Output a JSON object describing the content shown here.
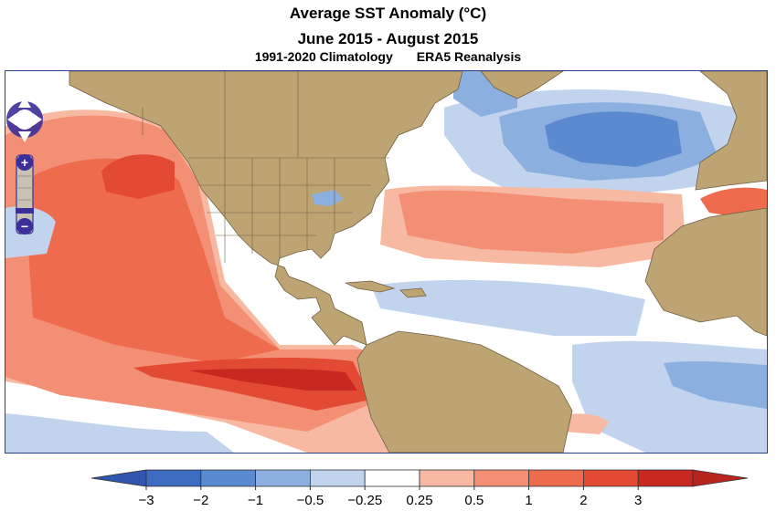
{
  "title": {
    "main": "Average SST Anomaly (°C)",
    "period": "June 2015 - August 2015",
    "climatology": "1991-2020 Climatology",
    "dataset": "ERA5 Reanalysis"
  },
  "map": {
    "land_color": "#bfa473",
    "ocean_color": "#ffffff",
    "border_color": "#2b3f8f",
    "controls": {
      "pan_up": "pan-up",
      "pan_down": "pan-down",
      "pan_left": "pan-left",
      "pan_right": "pan-right",
      "zoom_in": "+",
      "zoom_out": "−"
    }
  },
  "colorbar": {
    "ticks": [
      "−3",
      "−2",
      "−1",
      "−0.5",
      "−0.25",
      "0.25",
      "0.5",
      "1",
      "2",
      "3"
    ],
    "colors": [
      "#3d6bbf",
      "#5b8ad0",
      "#8bb0df",
      "#c2d3ee",
      "#ffffff",
      "#f7b9a2",
      "#f38f75",
      "#ef6b4e",
      "#e24a33",
      "#c7281f"
    ],
    "under_color": "#3057b0",
    "over_color": "#b8251d"
  }
}
